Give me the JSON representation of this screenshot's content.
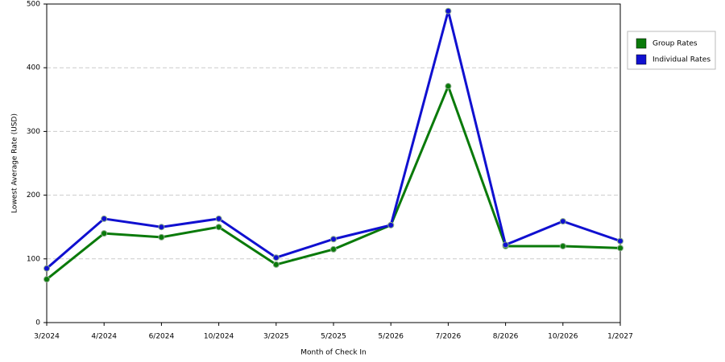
{
  "chart_data": {
    "type": "line",
    "x_label": "Month of Check In",
    "y_label": "Lowest Average Rate (USD)",
    "categories": [
      "3/2024",
      "4/2024",
      "6/2024",
      "10/2024",
      "3/2025",
      "5/2025",
      "5/2026",
      "7/2026",
      "8/2026",
      "10/2026",
      "1/2027"
    ],
    "series": [
      {
        "name": "Group Rates",
        "color": "#0a7a0a",
        "values": [
          68,
          140,
          134,
          150,
          91,
          115,
          153,
          371,
          120,
          120,
          117
        ]
      },
      {
        "name": "Individual Rates",
        "color": "#1010d0",
        "values": [
          85,
          163,
          150,
          163,
          102,
          131,
          153,
          489,
          122,
          159,
          128
        ]
      }
    ],
    "ylim": [
      0,
      500
    ],
    "yticks": [
      0,
      100,
      200,
      300,
      400,
      500
    ],
    "grid": true
  }
}
